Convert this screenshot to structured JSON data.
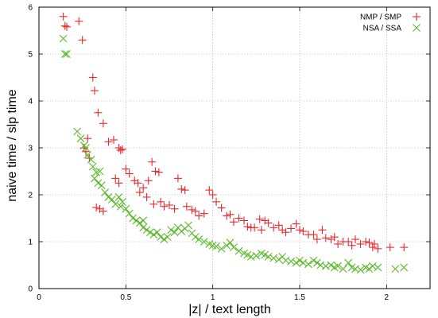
{
  "chart_data": {
    "type": "scatter",
    "title": "",
    "xlabel": "|z| / text length",
    "ylabel": "naive time / slp time",
    "xlim": [
      0,
      2.25
    ],
    "ylim": [
      0,
      6
    ],
    "xticks": [
      0,
      0.5,
      1,
      1.5,
      2
    ],
    "xtick_labels": [
      "0",
      "0.5",
      "1",
      "1.5",
      "2"
    ],
    "yticks": [
      0,
      1,
      2,
      3,
      4,
      5,
      6
    ],
    "ytick_labels": [
      "0",
      "1",
      "2",
      "3",
      "4",
      "5",
      "6"
    ],
    "grid": true,
    "legend_position": "top-right",
    "series": [
      {
        "name": "NMP / SMP",
        "marker": "plus",
        "color": "#e8272c",
        "points": [
          [
            0.14,
            5.8
          ],
          [
            0.15,
            5.6
          ],
          [
            0.16,
            5.58
          ],
          [
            0.23,
            5.7
          ],
          [
            0.25,
            5.3
          ],
          [
            0.31,
            4.5
          ],
          [
            0.32,
            4.22
          ],
          [
            0.34,
            3.75
          ],
          [
            0.37,
            3.52
          ],
          [
            0.28,
            3.2
          ],
          [
            0.26,
            3.0
          ],
          [
            0.27,
            2.92
          ],
          [
            0.29,
            2.78
          ],
          [
            0.4,
            3.13
          ],
          [
            0.43,
            3.17
          ],
          [
            0.46,
            3.0
          ],
          [
            0.47,
            2.95
          ],
          [
            0.48,
            2.97
          ],
          [
            0.44,
            2.35
          ],
          [
            0.46,
            2.25
          ],
          [
            0.33,
            1.73
          ],
          [
            0.35,
            1.7
          ],
          [
            0.37,
            1.65
          ],
          [
            0.5,
            2.55
          ],
          [
            0.52,
            2.45
          ],
          [
            0.55,
            2.3
          ],
          [
            0.57,
            2.25
          ],
          [
            0.6,
            2.15
          ],
          [
            0.63,
            2.3
          ],
          [
            0.65,
            2.7
          ],
          [
            0.67,
            2.5
          ],
          [
            0.69,
            2.48
          ],
          [
            0.58,
            2.05
          ],
          [
            0.62,
            1.95
          ],
          [
            0.66,
            1.8
          ],
          [
            0.7,
            1.85
          ],
          [
            0.72,
            1.75
          ],
          [
            0.75,
            1.78
          ],
          [
            0.78,
            1.7
          ],
          [
            0.8,
            2.35
          ],
          [
            0.82,
            2.12
          ],
          [
            0.84,
            2.1
          ],
          [
            0.85,
            1.75
          ],
          [
            0.88,
            1.68
          ],
          [
            0.9,
            1.65
          ],
          [
            0.92,
            1.55
          ],
          [
            0.95,
            1.6
          ],
          [
            0.98,
            2.1
          ],
          [
            1.0,
            2.0
          ],
          [
            1.02,
            1.85
          ],
          [
            1.05,
            1.72
          ],
          [
            1.08,
            1.55
          ],
          [
            1.1,
            1.58
          ],
          [
            1.12,
            1.42
          ],
          [
            1.15,
            1.5
          ],
          [
            1.18,
            1.45
          ],
          [
            1.2,
            1.32
          ],
          [
            1.22,
            1.3
          ],
          [
            1.24,
            1.3
          ],
          [
            1.27,
            1.48
          ],
          [
            1.28,
            1.25
          ],
          [
            1.3,
            1.45
          ],
          [
            1.32,
            1.4
          ],
          [
            1.35,
            1.3
          ],
          [
            1.38,
            1.35
          ],
          [
            1.4,
            1.25
          ],
          [
            1.42,
            1.2
          ],
          [
            1.45,
            1.28
          ],
          [
            1.48,
            1.38
          ],
          [
            1.5,
            1.25
          ],
          [
            1.52,
            1.22
          ],
          [
            1.55,
            1.15
          ],
          [
            1.58,
            1.15
          ],
          [
            1.6,
            1.05
          ],
          [
            1.63,
            1.25
          ],
          [
            1.65,
            1.08
          ],
          [
            1.68,
            1.05
          ],
          [
            1.7,
            1.1
          ],
          [
            1.72,
            0.95
          ],
          [
            1.75,
            1.0
          ],
          [
            1.78,
            1.0
          ],
          [
            1.8,
            0.92
          ],
          [
            1.82,
            1.05
          ],
          [
            1.85,
            0.95
          ],
          [
            1.88,
            1.0
          ],
          [
            1.9,
            0.98
          ],
          [
            1.92,
            0.88
          ],
          [
            1.93,
            0.95
          ],
          [
            1.95,
            0.85
          ],
          [
            2.02,
            0.88
          ],
          [
            2.1,
            0.88
          ]
        ]
      },
      {
        "name": "NSA / SSA",
        "marker": "cross",
        "color": "#5cb82a",
        "points": [
          [
            0.14,
            5.33
          ],
          [
            0.15,
            5.0
          ],
          [
            0.16,
            5.0
          ],
          [
            0.22,
            3.35
          ],
          [
            0.24,
            3.2
          ],
          [
            0.26,
            3.05
          ],
          [
            0.27,
            3.0
          ],
          [
            0.28,
            2.85
          ],
          [
            0.3,
            2.75
          ],
          [
            0.31,
            2.6
          ],
          [
            0.33,
            2.48
          ],
          [
            0.35,
            2.5
          ],
          [
            0.32,
            2.35
          ],
          [
            0.34,
            2.25
          ],
          [
            0.36,
            2.2
          ],
          [
            0.38,
            2.05
          ],
          [
            0.4,
            1.95
          ],
          [
            0.42,
            1.9
          ],
          [
            0.44,
            1.8
          ],
          [
            0.46,
            1.95
          ],
          [
            0.47,
            1.75
          ],
          [
            0.48,
            1.85
          ],
          [
            0.5,
            1.7
          ],
          [
            0.52,
            1.6
          ],
          [
            0.54,
            1.5
          ],
          [
            0.56,
            1.45
          ],
          [
            0.58,
            1.4
          ],
          [
            0.6,
            1.45
          ],
          [
            0.6,
            1.3
          ],
          [
            0.62,
            1.25
          ],
          [
            0.64,
            1.2
          ],
          [
            0.66,
            1.15
          ],
          [
            0.68,
            1.2
          ],
          [
            0.7,
            1.1
          ],
          [
            0.72,
            1.05
          ],
          [
            0.74,
            1.1
          ],
          [
            0.76,
            1.25
          ],
          [
            0.78,
            1.2
          ],
          [
            0.8,
            1.3
          ],
          [
            0.82,
            1.22
          ],
          [
            0.84,
            1.28
          ],
          [
            0.86,
            1.35
          ],
          [
            0.88,
            1.18
          ],
          [
            0.9,
            1.1
          ],
          [
            0.92,
            1.05
          ],
          [
            0.95,
            1.0
          ],
          [
            0.98,
            0.95
          ],
          [
            1.0,
            0.92
          ],
          [
            1.02,
            0.9
          ],
          [
            1.05,
            0.85
          ],
          [
            1.08,
            0.92
          ],
          [
            1.1,
            0.98
          ],
          [
            1.12,
            0.88
          ],
          [
            1.15,
            0.8
          ],
          [
            1.18,
            0.75
          ],
          [
            1.2,
            0.72
          ],
          [
            1.22,
            0.68
          ],
          [
            1.25,
            0.7
          ],
          [
            1.28,
            0.75
          ],
          [
            1.3,
            0.72
          ],
          [
            1.32,
            0.68
          ],
          [
            1.35,
            0.65
          ],
          [
            1.38,
            0.62
          ],
          [
            1.4,
            0.68
          ],
          [
            1.42,
            0.6
          ],
          [
            1.45,
            0.58
          ],
          [
            1.48,
            0.55
          ],
          [
            1.5,
            0.6
          ],
          [
            1.52,
            0.55
          ],
          [
            1.55,
            0.52
          ],
          [
            1.58,
            0.6
          ],
          [
            1.6,
            0.55
          ],
          [
            1.62,
            0.5
          ],
          [
            1.65,
            0.48
          ],
          [
            1.68,
            0.5
          ],
          [
            1.7,
            0.45
          ],
          [
            1.72,
            0.48
          ],
          [
            1.75,
            0.42
          ],
          [
            1.78,
            0.55
          ],
          [
            1.8,
            0.45
          ],
          [
            1.82,
            0.42
          ],
          [
            1.85,
            0.4
          ],
          [
            1.88,
            0.45
          ],
          [
            1.9,
            0.42
          ],
          [
            1.92,
            0.48
          ],
          [
            1.95,
            0.45
          ],
          [
            2.05,
            0.42
          ],
          [
            2.1,
            0.45
          ]
        ]
      }
    ]
  }
}
